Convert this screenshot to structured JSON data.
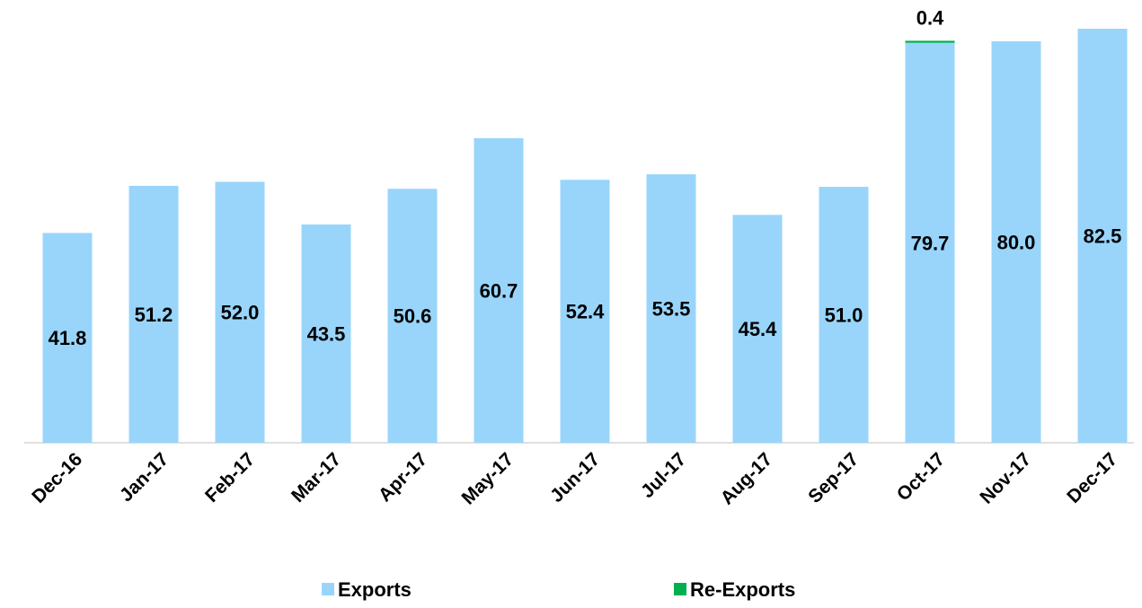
{
  "chart_data": {
    "type": "stacked_bar",
    "categories": [
      "Dec-16",
      "Jan-17",
      "Feb-17",
      "Mar-17",
      "Apr-17",
      "May-17",
      "Jun-17",
      "Jul-17",
      "Aug-17",
      "Sep-17",
      "Oct-17",
      "Nov-17",
      "Dec-17"
    ],
    "series": [
      {
        "name": "Exports",
        "color": "#99d5fb",
        "values": [
          41.8,
          51.2,
          52.0,
          43.5,
          50.6,
          60.7,
          52.4,
          53.5,
          45.4,
          51.0,
          79.7,
          80.0,
          82.5
        ],
        "value_labels": [
          "41.8",
          "51.2",
          "52.0",
          "43.5",
          "50.6",
          "60.7",
          "52.4",
          "53.5",
          "45.4",
          "51.0",
          "79.7",
          "80.0",
          "82.5"
        ]
      },
      {
        "name": "Re-Exports",
        "color": "#00b050",
        "values": [
          null,
          null,
          null,
          null,
          null,
          null,
          null,
          null,
          null,
          null,
          0.4,
          null,
          null
        ]
      }
    ],
    "legend": "bottom"
  }
}
